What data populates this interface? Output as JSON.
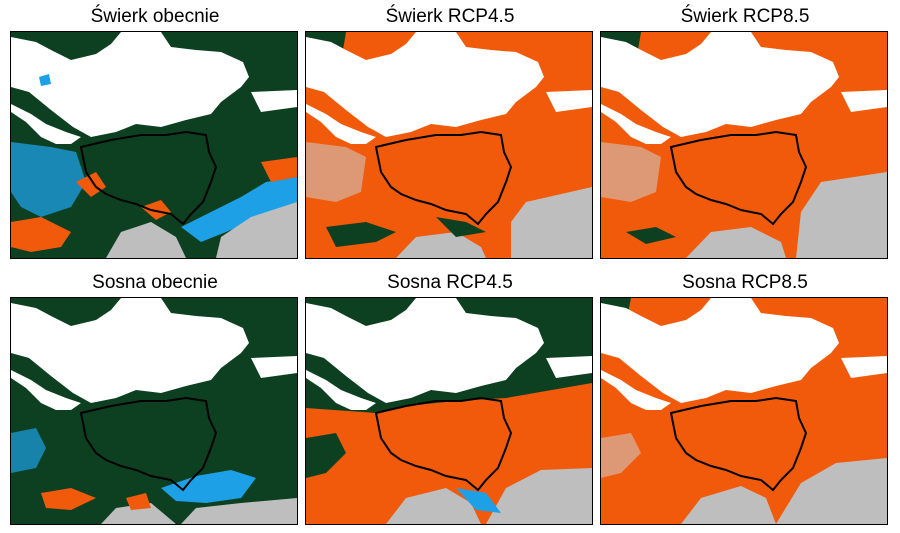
{
  "colors": {
    "stable_habitat": "#0d4021",
    "lost_habitat": "#f05a0a",
    "new_habitat": "#1ea0e6",
    "no_habitat": "#bebebe",
    "water": "#ffffff",
    "border": "#000000"
  },
  "panels": [
    {
      "title": "Świerk obecnie",
      "scenario": "current",
      "species": "spruce"
    },
    {
      "title": "Świerk RCP4.5",
      "scenario": "rcp45",
      "species": "spruce"
    },
    {
      "title": "Świerk RCP8.5",
      "scenario": "rcp85",
      "species": "spruce"
    },
    {
      "title": "Sosna obecnie",
      "scenario": "current",
      "species": "pine"
    },
    {
      "title": "Sosna RCP4.5",
      "scenario": "rcp45",
      "species": "pine"
    },
    {
      "title": "Sosna RCP8.5",
      "scenario": "rcp85",
      "species": "pine"
    }
  ]
}
